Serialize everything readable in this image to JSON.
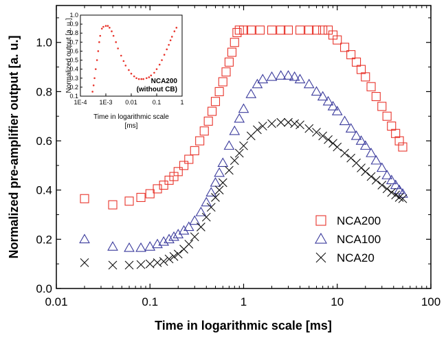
{
  "chart_data": [
    {
      "type": "scatter",
      "xlabel": "Time in logarithmic scale [ms]",
      "ylabel": "Normalized pre-amplifier output [a. u.]",
      "xscale": "log",
      "xlim": [
        0.01,
        100
      ],
      "ylim": [
        0.0,
        1.15
      ],
      "x_ticks": [
        "0.01",
        "0.1",
        "1",
        "10",
        "100"
      ],
      "y_ticks": [
        "0.0",
        "0.2",
        "0.4",
        "0.6",
        "0.8",
        "1.0"
      ],
      "legend_position": "bottom-right",
      "grid": false,
      "series": [
        {
          "name": "NCA200",
          "marker": "square",
          "color": "#e8332a",
          "points": [
            [
              0.02,
              0.365
            ],
            [
              0.04,
              0.34
            ],
            [
              0.06,
              0.355
            ],
            [
              0.08,
              0.37
            ],
            [
              0.1,
              0.385
            ],
            [
              0.12,
              0.405
            ],
            [
              0.14,
              0.42
            ],
            [
              0.16,
              0.44
            ],
            [
              0.18,
              0.455
            ],
            [
              0.2,
              0.475
            ],
            [
              0.23,
              0.5
            ],
            [
              0.26,
              0.525
            ],
            [
              0.3,
              0.56
            ],
            [
              0.34,
              0.6
            ],
            [
              0.38,
              0.64
            ],
            [
              0.42,
              0.68
            ],
            [
              0.46,
              0.72
            ],
            [
              0.5,
              0.76
            ],
            [
              0.55,
              0.8
            ],
            [
              0.6,
              0.84
            ],
            [
              0.65,
              0.88
            ],
            [
              0.7,
              0.92
            ],
            [
              0.75,
              0.96
            ],
            [
              0.8,
              1.0
            ],
            [
              0.85,
              1.04
            ],
            [
              0.9,
              1.05
            ],
            [
              1.0,
              1.05
            ],
            [
              1.2,
              1.05
            ],
            [
              1.5,
              1.05
            ],
            [
              2.0,
              1.05
            ],
            [
              2.5,
              1.05
            ],
            [
              3.0,
              1.05
            ],
            [
              4.0,
              1.05
            ],
            [
              5.0,
              1.05
            ],
            [
              6.0,
              1.05
            ],
            [
              7.0,
              1.05
            ],
            [
              8.0,
              1.05
            ],
            [
              9.0,
              1.03
            ],
            [
              10.0,
              1.01
            ],
            [
              12.0,
              0.98
            ],
            [
              14.0,
              0.95
            ],
            [
              16.0,
              0.92
            ],
            [
              18.0,
              0.89
            ],
            [
              20.0,
              0.86
            ],
            [
              23.0,
              0.82
            ],
            [
              26.0,
              0.78
            ],
            [
              30.0,
              0.74
            ],
            [
              34.0,
              0.7
            ],
            [
              38.0,
              0.66
            ],
            [
              42.0,
              0.63
            ],
            [
              46.0,
              0.6
            ],
            [
              50.0,
              0.575
            ]
          ]
        },
        {
          "name": "NCA100",
          "marker": "triangle",
          "color": "#3a3a9c",
          "points": [
            [
              0.02,
              0.2
            ],
            [
              0.04,
              0.17
            ],
            [
              0.06,
              0.165
            ],
            [
              0.08,
              0.165
            ],
            [
              0.1,
              0.17
            ],
            [
              0.12,
              0.18
            ],
            [
              0.14,
              0.19
            ],
            [
              0.16,
              0.2
            ],
            [
              0.18,
              0.21
            ],
            [
              0.2,
              0.22
            ],
            [
              0.23,
              0.235
            ],
            [
              0.26,
              0.25
            ],
            [
              0.3,
              0.275
            ],
            [
              0.35,
              0.31
            ],
            [
              0.4,
              0.35
            ],
            [
              0.45,
              0.39
            ],
            [
              0.5,
              0.43
            ],
            [
              0.55,
              0.47
            ],
            [
              0.6,
              0.51
            ],
            [
              0.7,
              0.58
            ],
            [
              0.8,
              0.64
            ],
            [
              0.9,
              0.69
            ],
            [
              1.0,
              0.73
            ],
            [
              1.2,
              0.79
            ],
            [
              1.4,
              0.83
            ],
            [
              1.6,
              0.85
            ],
            [
              2.0,
              0.86
            ],
            [
              2.5,
              0.865
            ],
            [
              3.0,
              0.865
            ],
            [
              3.5,
              0.86
            ],
            [
              4.0,
              0.85
            ],
            [
              5.0,
              0.83
            ],
            [
              6.0,
              0.8
            ],
            [
              7.0,
              0.78
            ],
            [
              8.0,
              0.76
            ],
            [
              9.0,
              0.74
            ],
            [
              10.0,
              0.72
            ],
            [
              12.0,
              0.68
            ],
            [
              14.0,
              0.65
            ],
            [
              16.0,
              0.62
            ],
            [
              18.0,
              0.6
            ],
            [
              20.0,
              0.58
            ],
            [
              23.0,
              0.55
            ],
            [
              26.0,
              0.52
            ],
            [
              30.0,
              0.49
            ],
            [
              34.0,
              0.46
            ],
            [
              38.0,
              0.44
            ],
            [
              42.0,
              0.42
            ],
            [
              46.0,
              0.4
            ],
            [
              50.0,
              0.385
            ]
          ]
        },
        {
          "name": "NCA20",
          "marker": "cross",
          "color": "#111111",
          "points": [
            [
              0.02,
              0.105
            ],
            [
              0.04,
              0.095
            ],
            [
              0.06,
              0.095
            ],
            [
              0.08,
              0.097
            ],
            [
              0.1,
              0.1
            ],
            [
              0.12,
              0.105
            ],
            [
              0.14,
              0.11
            ],
            [
              0.16,
              0.12
            ],
            [
              0.18,
              0.13
            ],
            [
              0.2,
              0.14
            ],
            [
              0.23,
              0.16
            ],
            [
              0.26,
              0.18
            ],
            [
              0.3,
              0.21
            ],
            [
              0.35,
              0.25
            ],
            [
              0.4,
              0.29
            ],
            [
              0.45,
              0.33
            ],
            [
              0.5,
              0.37
            ],
            [
              0.55,
              0.4
            ],
            [
              0.6,
              0.43
            ],
            [
              0.7,
              0.48
            ],
            [
              0.8,
              0.52
            ],
            [
              0.9,
              0.55
            ],
            [
              1.0,
              0.58
            ],
            [
              1.2,
              0.62
            ],
            [
              1.4,
              0.645
            ],
            [
              1.6,
              0.66
            ],
            [
              2.0,
              0.67
            ],
            [
              2.5,
              0.675
            ],
            [
              3.0,
              0.675
            ],
            [
              3.5,
              0.67
            ],
            [
              4.0,
              0.665
            ],
            [
              5.0,
              0.65
            ],
            [
              6.0,
              0.635
            ],
            [
              7.0,
              0.62
            ],
            [
              8.0,
              0.605
            ],
            [
              9.0,
              0.59
            ],
            [
              10.0,
              0.575
            ],
            [
              12.0,
              0.55
            ],
            [
              14.0,
              0.53
            ],
            [
              16.0,
              0.51
            ],
            [
              18.0,
              0.49
            ],
            [
              20.0,
              0.475
            ],
            [
              23.0,
              0.455
            ],
            [
              26.0,
              0.44
            ],
            [
              30.0,
              0.42
            ],
            [
              34.0,
              0.405
            ],
            [
              38.0,
              0.39
            ],
            [
              42.0,
              0.38
            ],
            [
              46.0,
              0.37
            ],
            [
              50.0,
              0.365
            ]
          ]
        }
      ]
    },
    {
      "type": "scatter",
      "role": "inset",
      "xlabel": "Time in logarithmic scale\n[ms]",
      "ylabel": "Normalized output [a. u.]",
      "xscale": "log",
      "xlim": [
        0.0001,
        1
      ],
      "ylim": [
        0.1,
        1.0
      ],
      "x_ticks": [
        "1E-4",
        "1E-3",
        "0.01",
        "0.1",
        "1"
      ],
      "y_ticks": [
        "0.1",
        "0.2",
        "0.3",
        "0.4",
        "0.5",
        "0.6",
        "0.7",
        "0.8",
        "0.9",
        "1.0"
      ],
      "annotation": "NCA200\n(without CB)",
      "series": [
        {
          "marker": "dot",
          "color": "#e8332a",
          "points": [
            [
              0.0003,
              0.15
            ],
            [
              0.00033,
              0.22
            ],
            [
              0.00036,
              0.3
            ],
            [
              0.0004,
              0.4
            ],
            [
              0.00045,
              0.5
            ],
            [
              0.0005,
              0.6
            ],
            [
              0.00055,
              0.7
            ],
            [
              0.0006,
              0.77
            ],
            [
              0.0007,
              0.85
            ],
            [
              0.0008,
              0.87
            ],
            [
              0.001,
              0.88
            ],
            [
              0.0012,
              0.88
            ],
            [
              0.0014,
              0.86
            ],
            [
              0.0017,
              0.82
            ],
            [
              0.002,
              0.77
            ],
            [
              0.0025,
              0.7
            ],
            [
              0.003,
              0.63
            ],
            [
              0.004,
              0.55
            ],
            [
              0.005,
              0.49
            ],
            [
              0.006,
              0.44
            ],
            [
              0.008,
              0.39
            ],
            [
              0.01,
              0.35
            ],
            [
              0.013,
              0.32
            ],
            [
              0.016,
              0.3
            ],
            [
              0.02,
              0.29
            ],
            [
              0.025,
              0.29
            ],
            [
              0.03,
              0.29
            ],
            [
              0.04,
              0.3
            ],
            [
              0.05,
              0.31
            ],
            [
              0.06,
              0.33
            ],
            [
              0.08,
              0.36
            ],
            [
              0.1,
              0.4
            ],
            [
              0.13,
              0.45
            ],
            [
              0.16,
              0.5
            ],
            [
              0.2,
              0.56
            ],
            [
              0.25,
              0.62
            ],
            [
              0.3,
              0.67
            ],
            [
              0.35,
              0.72
            ],
            [
              0.4,
              0.76
            ],
            [
              0.5,
              0.82
            ],
            [
              0.6,
              0.86
            ]
          ]
        }
      ]
    }
  ]
}
